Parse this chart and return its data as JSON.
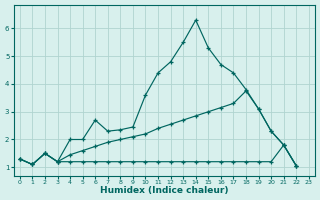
{
  "xlabel": "Humidex (Indice chaleur)",
  "background_color": "#d8f0ed",
  "grid_color": "#b0d4d0",
  "line_color": "#006660",
  "line1_x": [
    0,
    1,
    2,
    3,
    4,
    5,
    6,
    7,
    8,
    9,
    10,
    11,
    12,
    13,
    14,
    15,
    16,
    17,
    18,
    19,
    20,
    21,
    22
  ],
  "line1_y": [
    1.3,
    1.1,
    1.5,
    1.2,
    2.0,
    2.0,
    2.7,
    2.3,
    2.35,
    2.45,
    3.6,
    4.4,
    4.8,
    5.5,
    6.3,
    5.3,
    4.7,
    4.4,
    3.8,
    3.1,
    2.3,
    1.8,
    1.05
  ],
  "line2_x": [
    0,
    1,
    2,
    3,
    4,
    5,
    6,
    7,
    8,
    9,
    10,
    11,
    12,
    13,
    14,
    15,
    16,
    17,
    18,
    19,
    20,
    21,
    22
  ],
  "line2_y": [
    1.3,
    1.1,
    1.5,
    1.2,
    1.45,
    1.6,
    1.75,
    1.9,
    2.0,
    2.1,
    2.2,
    2.4,
    2.55,
    2.7,
    2.85,
    3.0,
    3.15,
    3.3,
    3.75,
    3.1,
    2.3,
    1.8,
    1.05
  ],
  "line3_x": [
    0,
    1,
    2,
    3,
    4,
    5,
    6,
    7,
    8,
    9,
    10,
    11,
    12,
    13,
    14,
    15,
    16,
    17,
    18,
    19,
    20,
    21,
    22
  ],
  "line3_y": [
    1.3,
    1.1,
    1.5,
    1.2,
    1.2,
    1.2,
    1.2,
    1.2,
    1.2,
    1.2,
    1.2,
    1.2,
    1.2,
    1.2,
    1.2,
    1.2,
    1.2,
    1.2,
    1.2,
    1.2,
    1.2,
    1.8,
    1.05
  ],
  "ylim": [
    0.7,
    6.85
  ],
  "xlim": [
    -0.5,
    23.5
  ],
  "yticks": [
    1,
    2,
    3,
    4,
    5,
    6
  ],
  "xticks": [
    0,
    1,
    2,
    3,
    4,
    5,
    6,
    7,
    8,
    9,
    10,
    11,
    12,
    13,
    14,
    15,
    16,
    17,
    18,
    19,
    20,
    21,
    22,
    23
  ]
}
